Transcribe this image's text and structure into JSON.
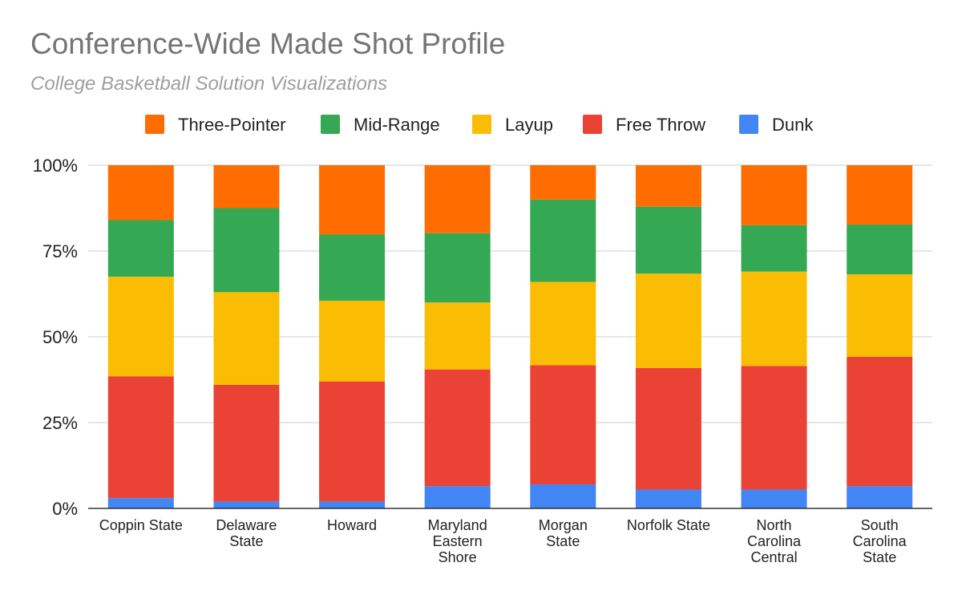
{
  "chart_data": {
    "type": "bar",
    "stacked": "percent",
    "title": "Conference-Wide Made Shot Profile",
    "subtitle": "College Basketball Solution Visualizations",
    "xlabel": "",
    "ylabel": "",
    "ylim": [
      0,
      100
    ],
    "yticks": [
      "0%",
      "25%",
      "50%",
      "75%",
      "100%"
    ],
    "grid": true,
    "legend_position": "top",
    "categories": [
      "Coppin State",
      "Delaware State",
      "Howard",
      "Maryland Eastern Shore",
      "Morgan State",
      "Norfolk State",
      "North Carolina Central",
      "South Carolina State"
    ],
    "category_label_lines": [
      [
        "Coppin State"
      ],
      [
        "Delaware",
        "State"
      ],
      [
        "Howard"
      ],
      [
        "Maryland",
        "Eastern",
        "Shore"
      ],
      [
        "Morgan",
        "State"
      ],
      [
        "Norfolk State"
      ],
      [
        "North",
        "Carolina",
        "Central"
      ],
      [
        "South",
        "Carolina",
        "State"
      ]
    ],
    "legend": [
      "Three-Pointer",
      "Mid-Range",
      "Layup",
      "Free Throw",
      "Dunk"
    ],
    "series": [
      {
        "name": "Dunk",
        "color": "#4285f4",
        "values": [
          3,
          2,
          2,
          6.5,
          7,
          5.5,
          5.5,
          6.5
        ]
      },
      {
        "name": "Free Throw",
        "color": "#ea4335",
        "values": [
          35.5,
          34,
          35,
          34,
          34.7,
          35.4,
          36,
          37.7
        ]
      },
      {
        "name": "Layup",
        "color": "#fbbc04",
        "values": [
          29,
          27,
          23.5,
          19.5,
          24.3,
          27.5,
          27.5,
          24
        ]
      },
      {
        "name": "Mid-Range",
        "color": "#34a853",
        "values": [
          16.5,
          24.5,
          19.3,
          20.2,
          24,
          19.5,
          13.5,
          14.5
        ]
      },
      {
        "name": "Three-Pointer",
        "color": "#ff6d01",
        "values": [
          16,
          12.5,
          20.2,
          19.8,
          10,
          12.1,
          17.5,
          17.3
        ]
      }
    ]
  }
}
